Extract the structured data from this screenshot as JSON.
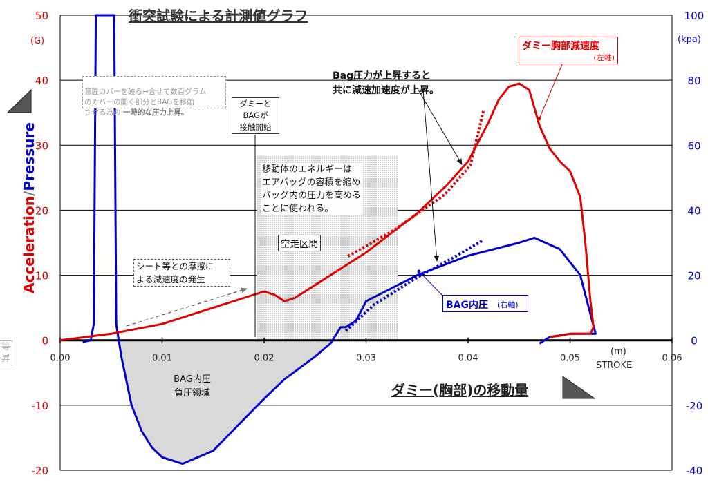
{
  "chart_data": {
    "type": "line",
    "title": "衝突試験による計測値グラフ",
    "xlabel": "ダミー(胸部)の移動量",
    "x_unit": "(m)",
    "x_unit_name": "STROKE",
    "ylabel_left": "Acceleration",
    "ylabel_sep": "/",
    "ylabel_right": "Pressure",
    "y_left_unit": "(G)",
    "y_right_unit": "(kpa)",
    "xlim": [
      0,
      0.06
    ],
    "ylim_left": [
      -20,
      50
    ],
    "ylim_right": [
      -40,
      100
    ],
    "x_ticks": [
      "0.00",
      "0.01",
      "0.02",
      "0.03",
      "0.04",
      "0.05",
      "0.06"
    ],
    "y_left_ticks": [
      "50",
      "40",
      "30",
      "20",
      "10",
      "0",
      "-10",
      "-20"
    ],
    "y_right_ticks": [
      "100",
      "80",
      "60",
      "40",
      "20",
      "0",
      "-20",
      "-40"
    ],
    "grid": true,
    "colors": {
      "accel": "#e00000",
      "pressure": "#0000cc",
      "fill": "#d9d9d9"
    },
    "series": [
      {
        "name": "ダミー胸部減速度",
        "axis": "left",
        "x": [
          0.0,
          0.005,
          0.01,
          0.015,
          0.018,
          0.02,
          0.021,
          0.022,
          0.023,
          0.025,
          0.03,
          0.035,
          0.038,
          0.04,
          0.042,
          0.043,
          0.044,
          0.045,
          0.046,
          0.047,
          0.048,
          0.049,
          0.05,
          0.051,
          0.0515,
          0.052,
          0.0523,
          0.052,
          0.051,
          0.05,
          0.049,
          0.048
        ],
        "y": [
          0,
          1,
          2.5,
          5,
          6.5,
          7.5,
          7,
          6,
          6.5,
          8.5,
          13.5,
          19.5,
          24,
          27.5,
          33.5,
          37,
          39,
          39.5,
          38.5,
          33,
          29.5,
          27.5,
          26,
          22,
          15,
          6,
          2,
          1,
          1,
          1,
          0.7,
          0.5
        ]
      },
      {
        "name": "BAG内圧",
        "axis": "right",
        "x": [
          0.0022,
          0.003,
          0.0033,
          0.0035,
          0.004,
          0.0048,
          0.005,
          0.0053,
          0.0055,
          0.006,
          0.007,
          0.008,
          0.009,
          0.01,
          0.012,
          0.015,
          0.02,
          0.022,
          0.025,
          0.0265,
          0.0275,
          0.028,
          0.029,
          0.03,
          0.035,
          0.04,
          0.045,
          0.0465,
          0.049,
          0.051,
          0.052,
          0.0525,
          0.052,
          0.05,
          0.048,
          0.047
        ],
        "y": [
          -0.5,
          0,
          5,
          100,
          100,
          100,
          100,
          100,
          5,
          -5,
          -20,
          -28,
          -33,
          -36,
          -38,
          -34,
          -18,
          -12,
          -5,
          -1,
          4,
          4,
          6,
          12,
          20,
          26,
          30,
          31.5,
          28,
          20,
          8,
          2,
          2,
          2,
          1,
          -1
        ]
      }
    ],
    "dotted_extensions": [
      {
        "axis": "left",
        "x": [
          0.0285,
          0.033,
          0.038,
          0.0405,
          0.0418
        ],
        "y": [
          12.5,
          16.5,
          22,
          26.5,
          35
        ]
      },
      {
        "axis": "right",
        "x": [
          0.0283,
          0.031,
          0.035,
          0.0385,
          0.0418
        ],
        "y": [
          2,
          10,
          18,
          24,
          30
        ]
      }
    ],
    "annotations": {
      "accel_legend_name": "ダミー胸部減速度",
      "accel_legend_axis": "(左軸)",
      "pressure_legend_name": "BAG内圧",
      "pressure_legend_axis": "(右軸)",
      "cover_break_text": "意匠カバーを破る→合せて数百グラム\nのカバーの開く部分とBAGを移動\nさせる為の ",
      "cover_break_bold": "一時的な圧力上昇。",
      "contact_text": "ダミーと\nBAGが\n接触開始",
      "both_rise_text": "Bag圧力が上昇すると\n共に減速加速度が上昇。",
      "energy_text": "移動体のエネルギーは\nエアバッグの容積を縮め\nバッグ内の圧力を高める\nことに使われる。",
      "free_run_text": "空走区間",
      "friction_text": "シート等との摩擦に\nよる減速度の発生",
      "negative_text": "BAG内圧\n負圧領域",
      "left_edge_text": "等\n昇"
    }
  }
}
